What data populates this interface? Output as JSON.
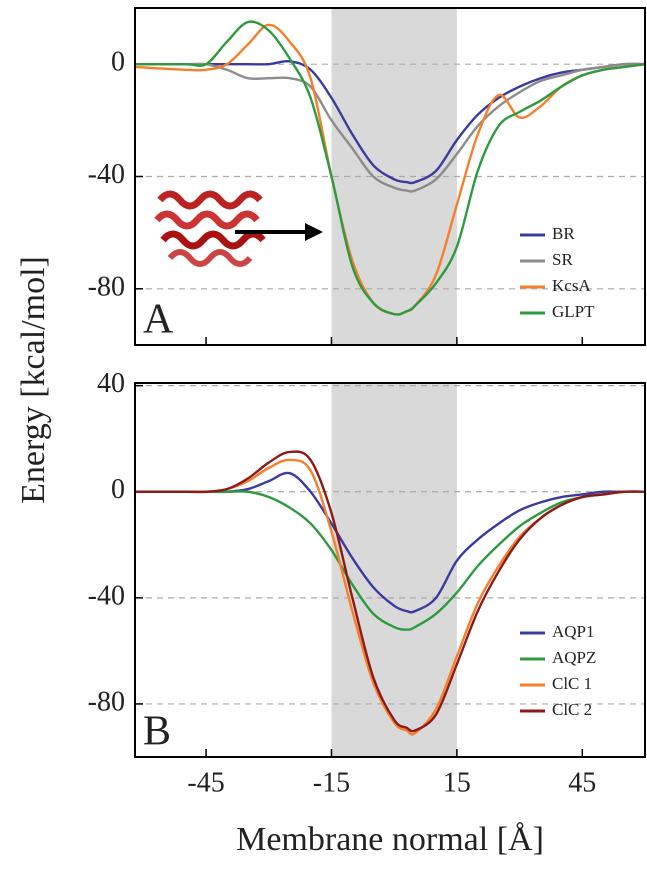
{
  "chart_data": [
    {
      "type": "line",
      "panel_label": "A",
      "y_label": "Energy [kcal/mol]",
      "x": [
        -62,
        -50,
        -45,
        -40,
        -35,
        -30,
        -25,
        -20,
        -15,
        -10,
        -5,
        0,
        3,
        5,
        10,
        15,
        20,
        25,
        30,
        35,
        40,
        45,
        50,
        55,
        60
      ],
      "xlim": [
        -62,
        60
      ],
      "xticks": [
        -45,
        -15,
        15,
        45
      ],
      "ylim": [
        -100,
        20
      ],
      "yticks": [
        -80,
        -40,
        0
      ],
      "shade": [
        -15,
        15
      ],
      "shade_color": "#d9d9d9",
      "grid": true,
      "legend": "lower right",
      "series": [
        {
          "name": "BR",
          "color": "#3b3b9e",
          "values": [
            0,
            0,
            0,
            0,
            0,
            0,
            1,
            -2,
            -12,
            -25,
            -36,
            -41,
            -42,
            -42,
            -38,
            -27,
            -18,
            -12,
            -8,
            -5,
            -3,
            -2,
            -1,
            0,
            0
          ]
        },
        {
          "name": "SR",
          "color": "#8c8c8c",
          "values": [
            0,
            0,
            0,
            -2,
            -5,
            -5,
            -5,
            -8,
            -20,
            -30,
            -40,
            -44,
            -45,
            -45,
            -41,
            -32,
            -22,
            -15,
            -10,
            -6,
            -4,
            -2,
            -1,
            0,
            0
          ]
        },
        {
          "name": "KcsA",
          "color": "#f57f2a",
          "values": [
            -1,
            -2,
            -2,
            0,
            7,
            14,
            8,
            -5,
            -40,
            -70,
            -85,
            -89,
            -88,
            -86,
            -75,
            -50,
            -25,
            -11,
            -19,
            -15,
            -8,
            -4,
            -2,
            -1,
            0
          ]
        },
        {
          "name": "GLPT",
          "color": "#2e9a3e",
          "values": [
            0,
            0,
            0,
            8,
            15,
            12,
            2,
            -12,
            -40,
            -72,
            -85,
            -89,
            -88,
            -86,
            -78,
            -65,
            -38,
            -22,
            -17,
            -13,
            -8,
            -4,
            -2,
            -1,
            0
          ]
        }
      ]
    },
    {
      "type": "line",
      "panel_label": "B",
      "x_label": "Membrane normal [Å]",
      "x": [
        -62,
        -50,
        -45,
        -40,
        -35,
        -30,
        -25,
        -20,
        -15,
        -10,
        -5,
        0,
        3,
        5,
        10,
        15,
        20,
        25,
        30,
        35,
        40,
        45,
        50,
        55,
        60
      ],
      "xlim": [
        -62,
        60
      ],
      "xticks": [
        -45,
        -15,
        15,
        45
      ],
      "ylim": [
        -100,
        41
      ],
      "yticks": [
        -80,
        -40,
        0,
        40
      ],
      "shade": [
        -15,
        15
      ],
      "shade_color": "#d9d9d9",
      "grid": true,
      "legend": "lower right",
      "series": [
        {
          "name": "AQP1",
          "color": "#3b3b9e",
          "values": [
            0,
            0,
            0,
            0,
            1,
            4,
            7,
            0,
            -12,
            -25,
            -36,
            -43,
            -45,
            -45,
            -40,
            -26,
            -18,
            -12,
            -7,
            -4,
            -2,
            -1,
            0,
            0,
            0
          ]
        },
        {
          "name": "AQPZ",
          "color": "#2e9a3e",
          "values": [
            0,
            0,
            0,
            0,
            0,
            -2,
            -6,
            -12,
            -22,
            -35,
            -46,
            -51,
            -52,
            -51,
            -46,
            -38,
            -28,
            -20,
            -13,
            -8,
            -4,
            -2,
            -1,
            0,
            0
          ]
        },
        {
          "name": "ClC 1",
          "color": "#f57f2a",
          "values": [
            0,
            0,
            0,
            1,
            4,
            9,
            12,
            8,
            -15,
            -45,
            -72,
            -87,
            -90,
            -91,
            -82,
            -62,
            -42,
            -28,
            -17,
            -10,
            -5,
            -2,
            -1,
            0,
            0
          ]
        },
        {
          "name": "ClC 2",
          "color": "#8b1a1a",
          "values": [
            0,
            0,
            0,
            1,
            5,
            11,
            15,
            12,
            -8,
            -40,
            -70,
            -86,
            -89,
            -90,
            -84,
            -65,
            -45,
            -30,
            -18,
            -10,
            -5,
            -2,
            -1,
            0,
            0
          ]
        }
      ]
    }
  ]
}
